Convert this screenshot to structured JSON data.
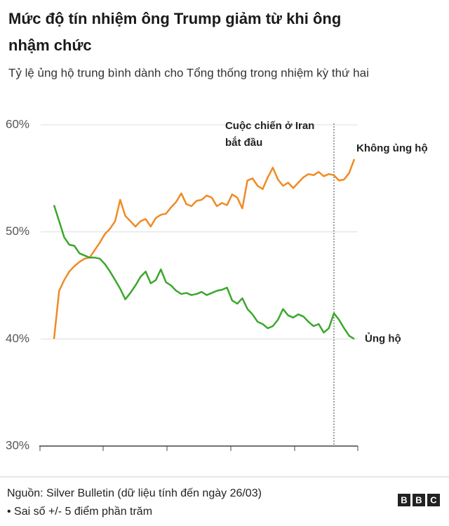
{
  "chart_data": {
    "type": "line",
    "title": [
      "Mức độ tín nhiệm ông Trump giảm từ khi ông",
      "nhậm chức"
    ],
    "subtitle": "Tỷ lệ ủng hộ trung bình dành cho Tổng thống trong nhiệm kỳ thứ hai",
    "categories": [
      null,
      null,
      null,
      null,
      null,
      null,
      null,
      null,
      null,
      null,
      null,
      null,
      null,
      null,
      null,
      null,
      null,
      null,
      null,
      null,
      null,
      null,
      null,
      null,
      null,
      null,
      null,
      null,
      null,
      null,
      null,
      null,
      null,
      null,
      null,
      null,
      null,
      null,
      null,
      null,
      null,
      null,
      null,
      null,
      null,
      null,
      null,
      null,
      null,
      null,
      null,
      null,
      null,
      null,
      null,
      null,
      null,
      null,
      null,
      null
    ],
    "series": [
      {
        "name": "Không ủng hộ",
        "color": "#f08a24",
        "values": [
          40,
          44.5,
          45.5,
          46.3,
          46.8,
          47.2,
          47.5,
          47.6,
          48.3,
          49,
          49.8,
          50.3,
          51,
          53,
          51.5,
          51,
          50.5,
          51,
          51.2,
          50.5,
          51.3,
          51.6,
          51.7,
          52.3,
          52.8,
          53.6,
          52.6,
          52.4,
          52.9,
          53,
          53.4,
          53.2,
          52.4,
          52.7,
          52.5,
          53.5,
          53.2,
          52.2,
          54.8,
          55,
          54.3,
          54,
          55.1,
          56,
          54.9,
          54.3,
          54.6,
          54.1,
          54.6,
          55.1,
          55.4,
          55.3,
          55.6,
          55.2,
          55.4,
          55.3,
          54.8,
          54.9,
          55.5,
          56.8
        ]
      },
      {
        "name": "Ủng hộ",
        "color": "#3aa82b",
        "values": [
          52.5,
          51,
          49.5,
          48.8,
          48.7,
          48,
          47.8,
          47.6,
          47.6,
          47.5,
          47,
          46.3,
          45.5,
          44.7,
          43.7,
          44.3,
          45,
          45.8,
          46.3,
          45.2,
          45.5,
          46.5,
          45.3,
          45,
          44.5,
          44.2,
          44.3,
          44.1,
          44.2,
          44.4,
          44.1,
          44.3,
          44.5,
          44.6,
          44.8,
          43.6,
          43.3,
          43.8,
          42.8,
          42.3,
          41.6,
          41.4,
          41,
          41.2,
          41.8,
          42.8,
          42.2,
          42,
          42.3,
          42.1,
          41.6,
          41.2,
          41.4,
          40.6,
          41,
          42.4,
          41.8,
          41,
          40.3,
          40
        ]
      }
    ],
    "ylim": [
      30,
      60
    ],
    "yticks": [
      {
        "value": 30,
        "label": "30%"
      },
      {
        "value": 40,
        "label": "40%"
      },
      {
        "value": 50,
        "label": "50%"
      },
      {
        "value": 60,
        "label": "60%"
      }
    ],
    "grid": true,
    "annotations": [
      {
        "text": [
          "Cuộc chiến ở Iran",
          "bắt đầu"
        ],
        "index": 55
      }
    ],
    "source": "Nguồn: Silver Bulletin (dữ liệu tính đến ngày 26/03)",
    "note": "• Sai số +/- 5 điểm phần trăm",
    "logo": [
      "B",
      "B",
      "C"
    ]
  }
}
